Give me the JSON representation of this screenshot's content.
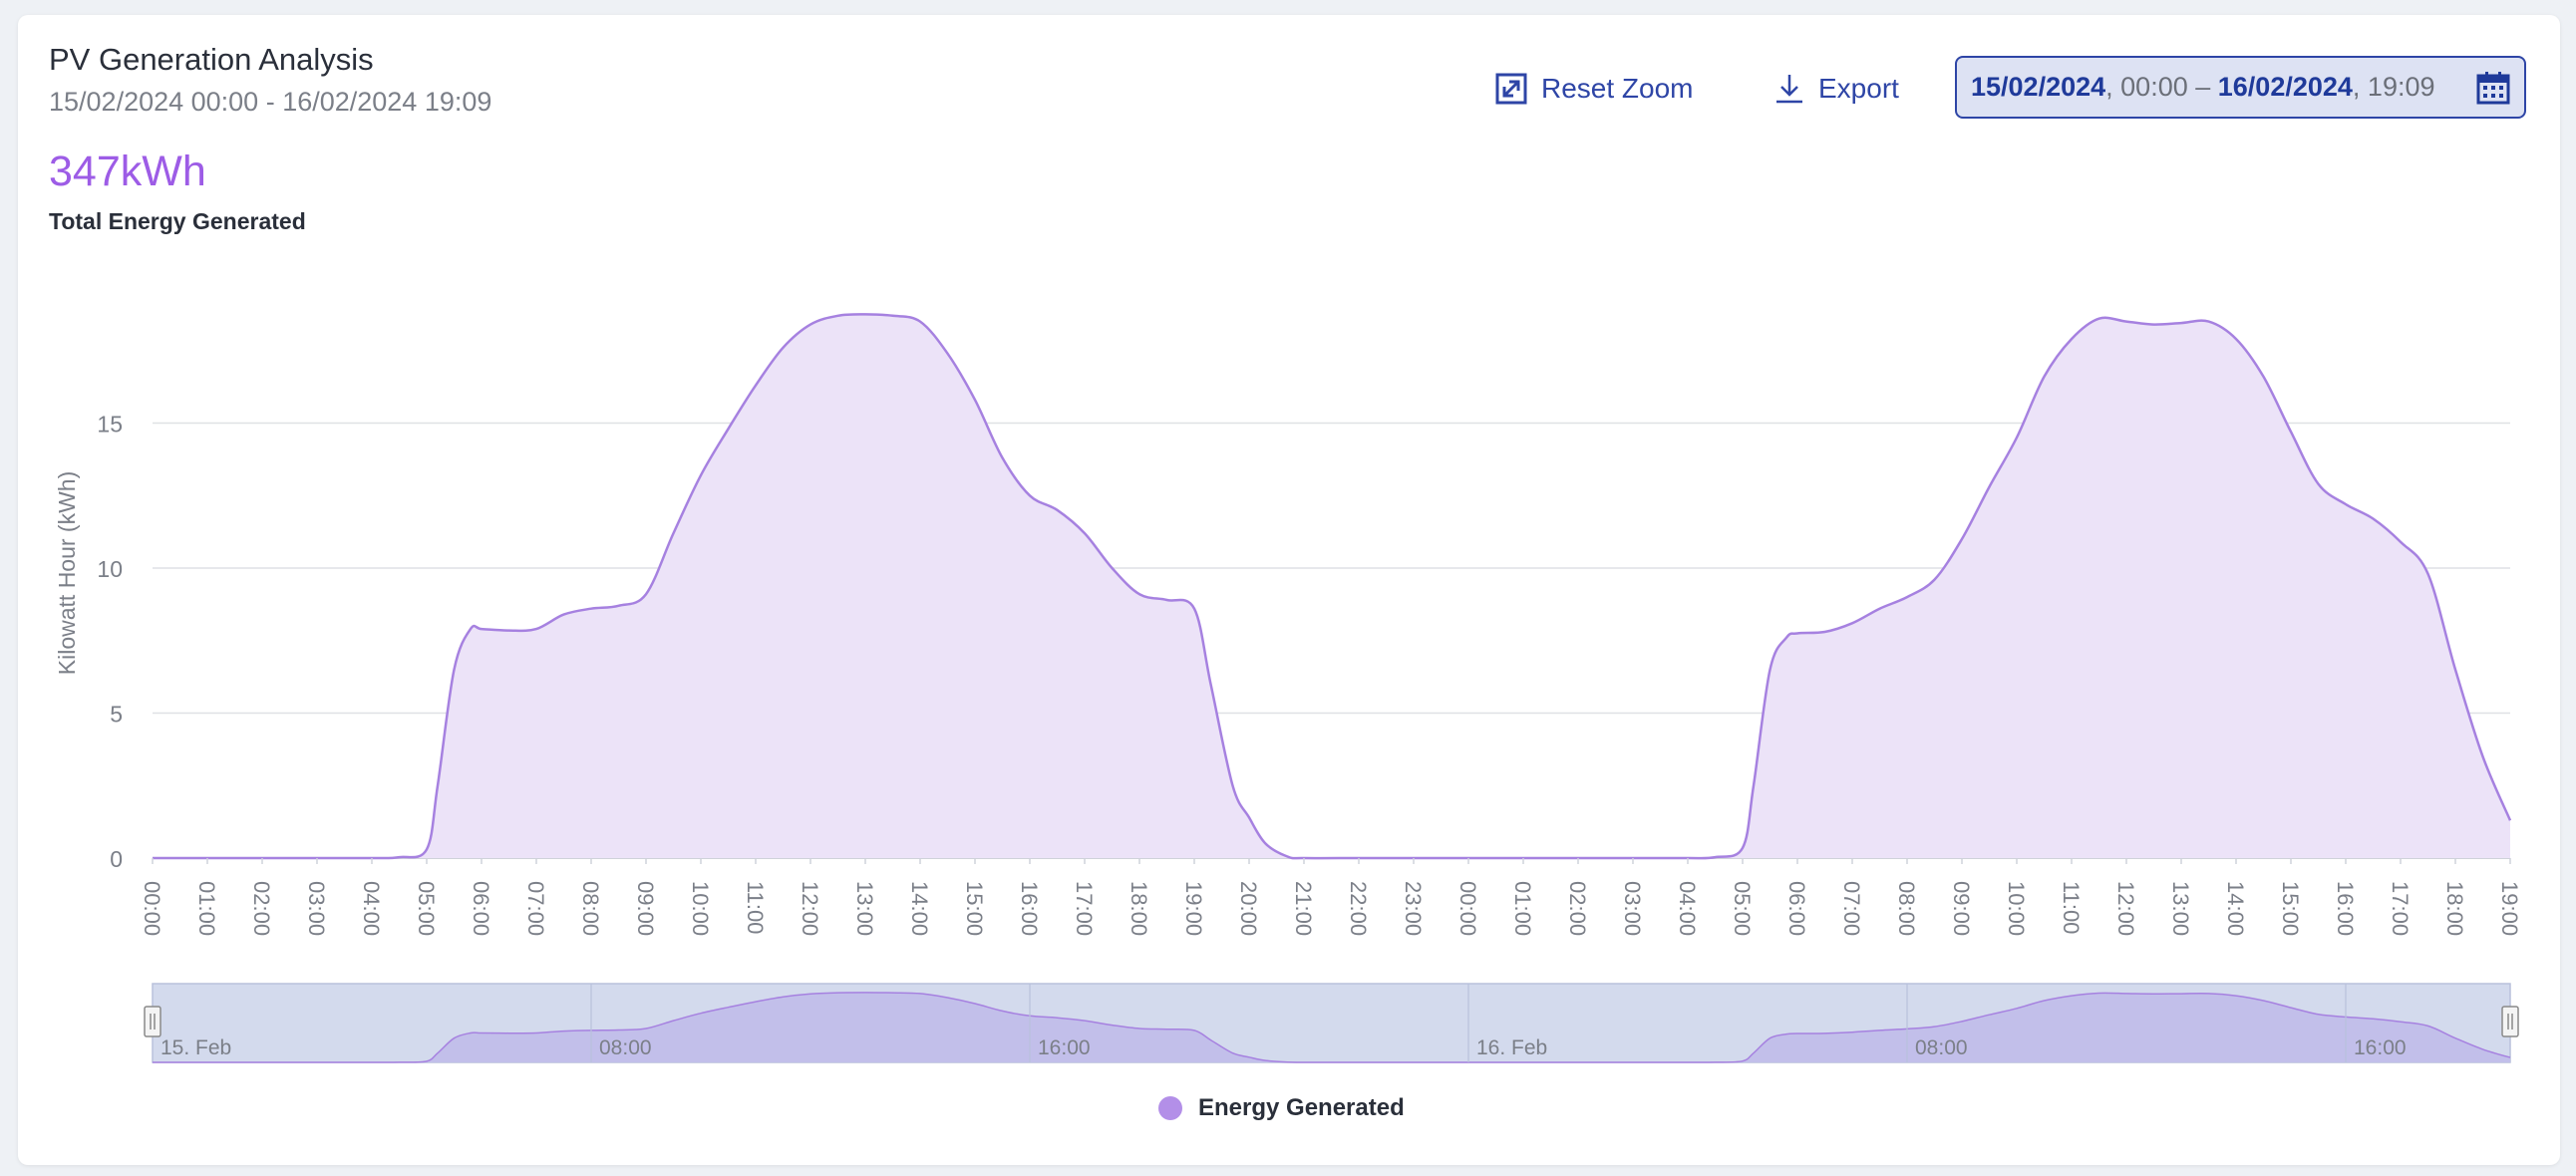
{
  "header": {
    "title": "PV Generation Analysis",
    "subtitle": "15/02/2024 00:00 - 16/02/2024 19:09",
    "total_value": "347kWh",
    "total_label": "Total Energy Generated"
  },
  "toolbar": {
    "reset_zoom": "Reset Zoom",
    "export": "Export",
    "date_from": "15/02/2024",
    "time_from": "00:00",
    "date_to": "16/02/2024",
    "time_to": "19:09",
    "sep": ", ",
    "dash": " – "
  },
  "legend": {
    "label": "Energy Generated"
  },
  "colors": {
    "accent": "#9d5ce6",
    "series_line": "#a681e0",
    "series_fill": "#ece3f8",
    "button": "#2e45a6",
    "navigator_bg": "#d3daed",
    "navigator_fill": "#c2bfea"
  },
  "icons": [
    "resize-icon",
    "download-icon",
    "calendar-icon"
  ],
  "chart_data": {
    "type": "area",
    "ylabel": "Kilowatt Hour (kWh)",
    "yticks": [
      0,
      5,
      10,
      15
    ],
    "ylim": [
      0,
      19
    ],
    "grid": true,
    "legend_placement": "bottom-center",
    "x_ticks": [
      "00:00",
      "01:00",
      "02:00",
      "03:00",
      "04:00",
      "05:00",
      "06:00",
      "07:00",
      "08:00",
      "09:00",
      "10:00",
      "11:00",
      "12:00",
      "13:00",
      "14:00",
      "15:00",
      "16:00",
      "17:00",
      "18:00",
      "19:00",
      "20:00",
      "21:00",
      "22:00",
      "23:00",
      "00:00",
      "01:00",
      "02:00",
      "03:00",
      "04:00",
      "05:00",
      "06:00",
      "07:00",
      "08:00",
      "09:00",
      "10:00",
      "11:00",
      "12:00",
      "13:00",
      "14:00",
      "15:00",
      "16:00",
      "17:00",
      "18:00",
      "19:00"
    ],
    "navigator_labels": [
      {
        "hour": 0,
        "text": "15. Feb"
      },
      {
        "hour": 8,
        "text": "08:00"
      },
      {
        "hour": 16,
        "text": "16:00"
      },
      {
        "hour": 24,
        "text": "16. Feb"
      },
      {
        "hour": 32,
        "text": "08:00"
      },
      {
        "hour": 40,
        "text": "16:00"
      }
    ],
    "series": [
      {
        "name": "Energy Generated",
        "x_hours": [
          0,
          1,
          2,
          3,
          4,
          4.5,
          5.0,
          5.2,
          5.5,
          5.8,
          6.0,
          6.5,
          7.0,
          7.5,
          8.0,
          8.5,
          9.0,
          9.5,
          10.0,
          10.5,
          11.0,
          11.5,
          12.0,
          12.5,
          13.0,
          13.5,
          14.0,
          14.5,
          15.0,
          15.5,
          16.0,
          16.5,
          17.0,
          17.5,
          18.0,
          18.5,
          19.0,
          19.3,
          19.7,
          20.0,
          20.3,
          20.7,
          21.0,
          22,
          23,
          24,
          25,
          26,
          27,
          28,
          28.5,
          29.0,
          29.2,
          29.5,
          29.8,
          30.0,
          30.5,
          31.0,
          31.5,
          32.0,
          32.5,
          33.0,
          33.5,
          34.0,
          34.5,
          35.0,
          35.5,
          36.0,
          36.5,
          37.0,
          37.5,
          38.0,
          38.5,
          39.0,
          39.5,
          40.0,
          40.5,
          41.0,
          41.5,
          42.0,
          42.5,
          43.0
        ],
        "values": [
          0,
          0,
          0,
          0,
          0,
          0.03,
          0.3,
          2.5,
          6.5,
          7.9,
          7.9,
          7.85,
          7.9,
          8.4,
          8.6,
          8.7,
          9.1,
          11.2,
          13.2,
          14.8,
          16.3,
          17.6,
          18.4,
          18.7,
          18.75,
          18.7,
          18.5,
          17.4,
          15.8,
          13.8,
          12.5,
          12.0,
          11.2,
          10.0,
          9.1,
          8.9,
          8.6,
          6.0,
          2.5,
          1.4,
          0.5,
          0.05,
          0,
          0,
          0,
          0,
          0,
          0,
          0,
          0,
          0.03,
          0.35,
          2.5,
          6.5,
          7.6,
          7.75,
          7.8,
          8.1,
          8.6,
          9.0,
          9.6,
          11.0,
          12.8,
          14.5,
          16.6,
          17.9,
          18.6,
          18.5,
          18.4,
          18.45,
          18.5,
          17.9,
          16.6,
          14.7,
          12.9,
          12.2,
          11.7,
          10.9,
          9.8,
          6.5,
          3.5,
          1.3
        ]
      }
    ]
  }
}
